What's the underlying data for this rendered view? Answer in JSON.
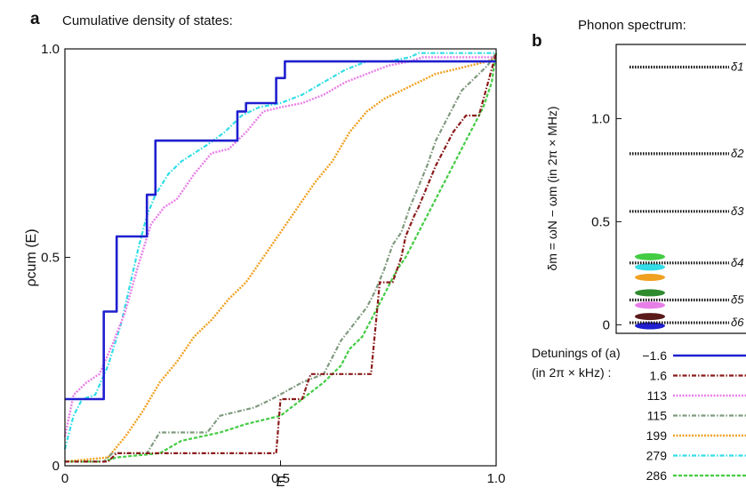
{
  "panel_a": {
    "letter": "a",
    "title": "Cumulative density of states:"
  },
  "panel_b": {
    "letter": "b",
    "title": "Phonon spectrum:"
  },
  "legend": {
    "title_line1": "Detunings of (a)",
    "title_line2": "(in 2π × kHz) :"
  },
  "colors": {
    "blue": "#1f1fcf",
    "darkred": "#8b1a1a",
    "violet": "#e87ee8",
    "gray": "#7f9a7f",
    "orange": "#f0a020",
    "cyan": "#33dde8",
    "green": "#44cc44"
  },
  "chart_data": [
    {
      "type": "line",
      "panel": "a",
      "title": "Cumulative density of states:",
      "xlabel": "E",
      "ylabel": "ρcum (E)",
      "xlim": [
        0,
        1
      ],
      "ylim": [
        0,
        1
      ],
      "xticks": [
        "0",
        "0.5",
        "1.0"
      ],
      "yticks": [
        "0",
        "0.5",
        "1.0"
      ],
      "series": [
        {
          "name": "−1.6",
          "color": "#1f1fcf",
          "style": "solid",
          "x": [
            0,
            0.09,
            0.09,
            0.12,
            0.12,
            0.19,
            0.19,
            0.21,
            0.21,
            0.4,
            0.4,
            0.42,
            0.42,
            0.49,
            0.49,
            0.51,
            0.51,
            1.0
          ],
          "y": [
            0.16,
            0.16,
            0.37,
            0.37,
            0.55,
            0.55,
            0.65,
            0.65,
            0.78,
            0.78,
            0.85,
            0.85,
            0.87,
            0.87,
            0.93,
            0.93,
            0.97,
            0.97
          ]
        },
        {
          "name": "1.6",
          "color": "#8b1a1a",
          "style": "dashdot",
          "x": [
            0,
            0.1,
            0.12,
            0.19,
            0.22,
            0.49,
            0.5,
            0.55,
            0.57,
            0.71,
            0.73,
            0.76,
            0.78,
            0.79,
            0.81,
            0.82,
            0.84,
            0.86,
            0.89,
            0.9,
            0.93,
            0.96,
            1.0
          ],
          "y": [
            0.01,
            0.01,
            0.03,
            0.03,
            0.03,
            0.03,
            0.16,
            0.16,
            0.22,
            0.22,
            0.44,
            0.44,
            0.5,
            0.55,
            0.6,
            0.62,
            0.67,
            0.72,
            0.78,
            0.8,
            0.84,
            0.84,
            0.99
          ]
        },
        {
          "name": "113",
          "color": "#e87ee8",
          "style": "dotted",
          "x": [
            0,
            0.02,
            0.05,
            0.08,
            0.11,
            0.14,
            0.17,
            0.2,
            0.23,
            0.26,
            0.3,
            0.34,
            0.38,
            0.42,
            0.46,
            0.5,
            0.55,
            0.6,
            0.65,
            0.7,
            0.75,
            0.8,
            0.83,
            1.0
          ],
          "y": [
            0.07,
            0.17,
            0.2,
            0.22,
            0.29,
            0.37,
            0.48,
            0.58,
            0.62,
            0.64,
            0.7,
            0.75,
            0.76,
            0.8,
            0.85,
            0.86,
            0.87,
            0.89,
            0.92,
            0.94,
            0.96,
            0.97,
            0.98,
            0.98
          ]
        },
        {
          "name": "115",
          "color": "#7f9a7f",
          "style": "dashdot",
          "x": [
            0,
            0.09,
            0.11,
            0.19,
            0.22,
            0.33,
            0.36,
            0.44,
            0.48,
            0.55,
            0.6,
            0.64,
            0.67,
            0.7,
            0.72,
            0.74,
            0.76,
            0.78,
            0.8,
            0.82,
            0.84,
            0.86,
            0.88,
            0.9,
            0.92,
            0.95,
            0.98,
            1.0
          ],
          "y": [
            0.01,
            0.01,
            0.03,
            0.03,
            0.08,
            0.08,
            0.12,
            0.14,
            0.16,
            0.2,
            0.22,
            0.3,
            0.34,
            0.38,
            0.42,
            0.47,
            0.53,
            0.56,
            0.62,
            0.67,
            0.72,
            0.78,
            0.82,
            0.86,
            0.9,
            0.93,
            0.96,
            0.99
          ]
        },
        {
          "name": "199",
          "color": "#f0a020",
          "style": "dotted",
          "x": [
            0,
            0.1,
            0.14,
            0.18,
            0.22,
            0.26,
            0.3,
            0.34,
            0.38,
            0.42,
            0.46,
            0.5,
            0.54,
            0.58,
            0.62,
            0.66,
            0.7,
            0.74,
            0.78,
            0.82,
            0.86,
            0.9,
            0.94,
            0.98,
            1.0
          ],
          "y": [
            0.01,
            0.02,
            0.07,
            0.13,
            0.2,
            0.25,
            0.31,
            0.35,
            0.4,
            0.44,
            0.5,
            0.56,
            0.62,
            0.68,
            0.73,
            0.8,
            0.85,
            0.88,
            0.9,
            0.92,
            0.94,
            0.95,
            0.96,
            0.97,
            0.98
          ]
        },
        {
          "name": "279",
          "color": "#33dde8",
          "style": "dashdot",
          "x": [
            0,
            0.02,
            0.04,
            0.07,
            0.1,
            0.13,
            0.15,
            0.17,
            0.19,
            0.21,
            0.24,
            0.27,
            0.3,
            0.33,
            0.37,
            0.41,
            0.45,
            0.5,
            0.55,
            0.6,
            0.65,
            0.7,
            0.75,
            0.8,
            0.82,
            1.0
          ],
          "y": [
            0.04,
            0.12,
            0.16,
            0.17,
            0.24,
            0.34,
            0.43,
            0.52,
            0.6,
            0.65,
            0.7,
            0.73,
            0.75,
            0.77,
            0.8,
            0.84,
            0.86,
            0.87,
            0.89,
            0.92,
            0.95,
            0.97,
            0.97,
            0.98,
            0.99,
            0.99
          ]
        },
        {
          "name": "286",
          "color": "#44cc44",
          "style": "dashed",
          "x": [
            0,
            0.09,
            0.12,
            0.22,
            0.27,
            0.36,
            0.42,
            0.5,
            0.55,
            0.6,
            0.64,
            0.66,
            0.69,
            0.71,
            0.73,
            0.75,
            0.77,
            0.79,
            0.81,
            0.83,
            0.85,
            0.87,
            0.89,
            0.91,
            0.93,
            0.95,
            0.97,
            0.99,
            1.0
          ],
          "y": [
            0.01,
            0.01,
            0.02,
            0.03,
            0.06,
            0.08,
            0.1,
            0.12,
            0.16,
            0.2,
            0.24,
            0.28,
            0.31,
            0.35,
            0.39,
            0.43,
            0.47,
            0.5,
            0.54,
            0.58,
            0.62,
            0.66,
            0.7,
            0.74,
            0.78,
            0.82,
            0.86,
            0.92,
            0.99
          ]
        }
      ]
    },
    {
      "type": "scatter",
      "panel": "b",
      "title": "Phonon spectrum:",
      "ylabel": "δm = ωN − ωm (in 2π × MHz)",
      "ylim": [
        -0.02,
        1.36
      ],
      "yticks": [
        "0",
        "0.5",
        "1.0"
      ],
      "levels": [
        {
          "label": "δ1",
          "value": 1.25
        },
        {
          "label": "δ2",
          "value": 0.83
        },
        {
          "label": "δ3",
          "value": 0.55
        },
        {
          "label": "δ4",
          "value": 0.3
        },
        {
          "label": "δ5",
          "value": 0.12
        },
        {
          "label": "δ6",
          "value": 0.01
        }
      ],
      "markers": [
        {
          "series": "286",
          "value": 0.33,
          "color": "#44cc44"
        },
        {
          "series": "279",
          "value": 0.28,
          "color": "#33dde8"
        },
        {
          "series": "199",
          "value": 0.23,
          "color": "#f0a020"
        },
        {
          "series": "115",
          "value": 0.155,
          "color": "#2e8b2e"
        },
        {
          "series": "113",
          "value": 0.095,
          "color": "#e87ee8"
        },
        {
          "series": "1.6",
          "value": 0.04,
          "color": "#5a1a1a"
        },
        {
          "series": "−1.6",
          "value": -0.005,
          "color": "#1f1fcf"
        }
      ]
    }
  ]
}
